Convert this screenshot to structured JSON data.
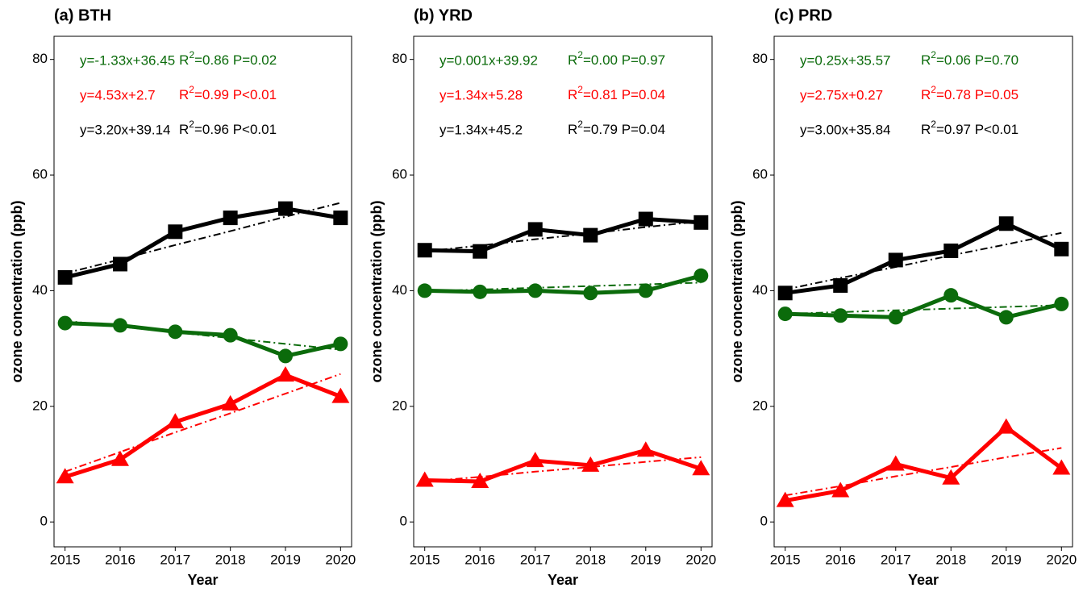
{
  "chart_data": [
    {
      "type": "line",
      "title": "(a) BTH",
      "xlabel": "Year",
      "ylabel": "ozone concentration (ppb)",
      "x": [
        2015,
        2016,
        2017,
        2018,
        2019,
        2020
      ],
      "xlim": [
        2014.8,
        2020.2
      ],
      "xticks": [
        2015,
        2016,
        2017,
        2018,
        2019,
        2020
      ],
      "ylim": [
        -4.3,
        84
      ],
      "yticks": [
        0,
        20,
        40,
        60,
        80
      ],
      "series": [
        {
          "color": "#000000",
          "marker": "square",
          "values": [
            42.3,
            44.6,
            50.2,
            52.6,
            54.2,
            52.6
          ],
          "trend": [
            43.0,
            45.4,
            47.9,
            50.3,
            52.8,
            55.2
          ]
        },
        {
          "color": "#0b6b0b",
          "marker": "circle",
          "values": [
            34.4,
            34.0,
            32.9,
            32.3,
            28.7,
            30.8
          ],
          "trend": [
            34.8,
            33.8,
            32.8,
            31.8,
            30.8,
            29.8
          ]
        },
        {
          "color": "#ff0000",
          "marker": "triangle",
          "values": [
            7.8,
            10.8,
            17.3,
            20.4,
            25.4,
            21.7
          ],
          "trend": [
            8.7,
            12.1,
            15.5,
            18.8,
            22.2,
            25.6
          ]
        }
      ],
      "annotations": [
        {
          "equation": "y=-1.33x+36.45",
          "r": "R",
          "sup": "2",
          "stats": "=0.86 P=0.02",
          "color": "#0b6b0b"
        },
        {
          "equation": "y=4.53x+2.7",
          "r": "R",
          "sup": "2",
          "stats": "=0.99 P<0.01",
          "color": "#ff0000"
        },
        {
          "equation": "y=3.20x+39.14",
          "r": "R",
          "sup": "2",
          "stats": "=0.96 P<0.01",
          "color": "#000000"
        }
      ]
    },
    {
      "type": "line",
      "title": "(b) YRD",
      "xlabel": "Year",
      "ylabel": "ozone concentration (ppb)",
      "x": [
        2015,
        2016,
        2017,
        2018,
        2019,
        2020
      ],
      "xlim": [
        2014.8,
        2020.2
      ],
      "xticks": [
        2015,
        2016,
        2017,
        2018,
        2019,
        2020
      ],
      "ylim": [
        -4.3,
        84
      ],
      "yticks": [
        0,
        20,
        40,
        60,
        80
      ],
      "series": [
        {
          "color": "#000000",
          "marker": "square",
          "values": [
            47.0,
            46.8,
            50.6,
            49.6,
            52.4,
            51.8
          ],
          "trend": [
            46.8,
            47.8,
            48.9,
            49.9,
            51.0,
            52.0
          ]
        },
        {
          "color": "#0b6b0b",
          "marker": "circle",
          "values": [
            40.0,
            39.8,
            40.0,
            39.6,
            40.0,
            42.6
          ],
          "trend": [
            39.9,
            40.2,
            40.5,
            40.8,
            41.1,
            41.4
          ]
        },
        {
          "color": "#ff0000",
          "marker": "triangle",
          "values": [
            7.2,
            7.0,
            10.6,
            9.8,
            12.4,
            9.2
          ],
          "trend": [
            7.0,
            7.8,
            8.7,
            9.5,
            10.4,
            11.2
          ]
        }
      ],
      "annotations": [
        {
          "equation": "y=0.001x+39.92",
          "r": "R",
          "sup": "2",
          "stats": "=0.00 P=0.97",
          "color": "#0b6b0b"
        },
        {
          "equation": "y=1.34x+5.28",
          "r": "R",
          "sup": "2",
          "stats": "=0.81 P=0.04",
          "color": "#ff0000"
        },
        {
          "equation": "y=1.34x+45.2",
          "r": "R",
          "sup": "2",
          "stats": "=0.79 P=0.04",
          "color": "#000000"
        }
      ]
    },
    {
      "type": "line",
      "title": "(c) PRD",
      "xlabel": "Year",
      "ylabel": "ozone concentration (ppb)",
      "x": [
        2015,
        2016,
        2017,
        2018,
        2019,
        2020
      ],
      "xlim": [
        2014.8,
        2020.2
      ],
      "xticks": [
        2015,
        2016,
        2017,
        2018,
        2019,
        2020
      ],
      "ylim": [
        -4.3,
        84
      ],
      "yticks": [
        0,
        20,
        40,
        60,
        80
      ],
      "series": [
        {
          "color": "#000000",
          "marker": "square",
          "values": [
            39.6,
            40.9,
            45.3,
            46.9,
            51.6,
            47.2
          ],
          "trend": [
            40.2,
            42.2,
            44.1,
            46.1,
            48.0,
            50.0
          ]
        },
        {
          "color": "#0b6b0b",
          "marker": "circle",
          "values": [
            36.0,
            35.7,
            35.4,
            39.2,
            35.4,
            37.7
          ],
          "trend": [
            36.0,
            36.3,
            36.6,
            36.9,
            37.2,
            37.5
          ]
        },
        {
          "color": "#ff0000",
          "marker": "triangle",
          "values": [
            3.7,
            5.4,
            10.0,
            7.6,
            16.4,
            9.3
          ],
          "trend": [
            4.6,
            6.2,
            7.9,
            9.5,
            11.2,
            12.8
          ]
        }
      ],
      "annotations": [
        {
          "equation": "y=0.25x+35.57",
          "r": "R",
          "sup": "2",
          "stats": "=0.06 P=0.70",
          "color": "#0b6b0b"
        },
        {
          "equation": "y=2.75x+0.27",
          "r": "R",
          "sup": "2",
          "stats": "=0.78 P=0.05",
          "color": "#ff0000"
        },
        {
          "equation": "y=3.00x+35.84",
          "r": "R",
          "sup": "2",
          "stats": "=0.97 P<0.01",
          "color": "#000000"
        }
      ]
    }
  ]
}
